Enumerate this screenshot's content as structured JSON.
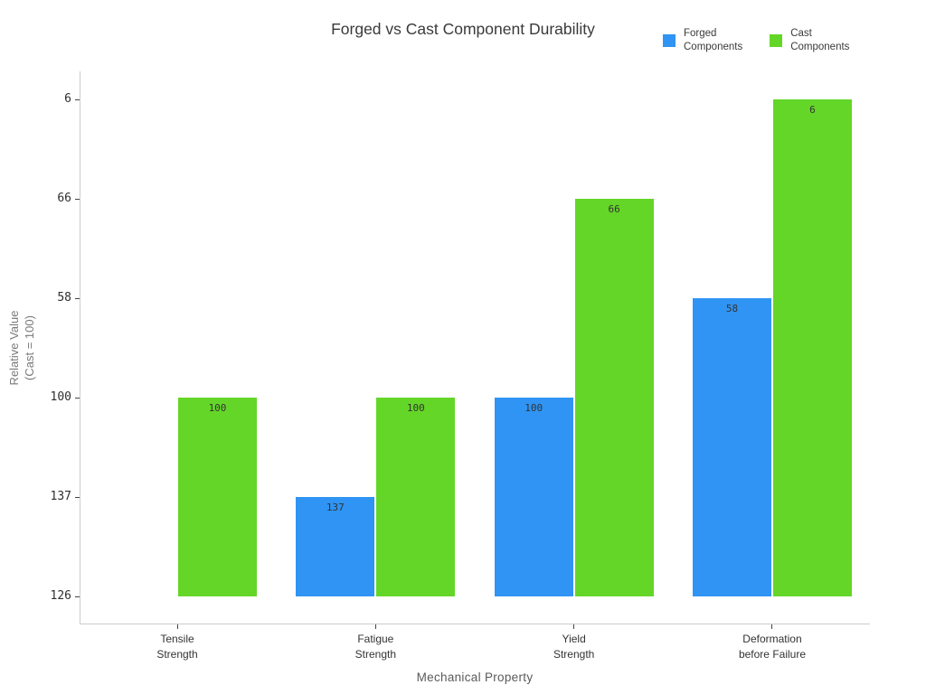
{
  "chart_data": {
    "type": "bar",
    "title": "Forged vs Cast Component Durability",
    "xlabel": "Mechanical Property",
    "ylabel_lines": [
      "Relative Value",
      "(Cast = 100)"
    ],
    "categories": [
      "Tensile Strength",
      "Fatigue Strength",
      "Yield Strength",
      "Deformation before Failure"
    ],
    "category_label_lines": [
      [
        "Tensile",
        "Strength"
      ],
      [
        "Fatigue",
        "Strength"
      ],
      [
        "Yield",
        "Strength"
      ],
      [
        "Deformation",
        "before Failure"
      ]
    ],
    "series": [
      {
        "name": "Forged Components",
        "name_lines": [
          "Forged",
          "Components"
        ],
        "color": "#2F94F3",
        "values": [
          126,
          137,
          100,
          58
        ]
      },
      {
        "name": "Cast Components",
        "name_lines": [
          "Cast",
          "Components"
        ],
        "color": "#64D628",
        "values": [
          100,
          100,
          66,
          6
        ]
      }
    ],
    "y_axis": {
      "tick_labels_bottom_to_top": [
        "126",
        "137",
        "100",
        "58",
        "66",
        "6"
      ],
      "note": "y-axis is categorical: tick order reflects order values were plotted, not numeric order"
    },
    "visible_bar_value_labels": [
      "100",
      "137",
      "100",
      "100",
      "66",
      "58",
      "6"
    ],
    "grid": false,
    "legend_position": "top-right",
    "colors": {
      "forged_blue": "#2F94F3",
      "cast_green": "#64D628",
      "spine_gray": "#cccccc",
      "title_text": "#3a3a3a",
      "axis_title_text": "#5a5a5a"
    }
  }
}
